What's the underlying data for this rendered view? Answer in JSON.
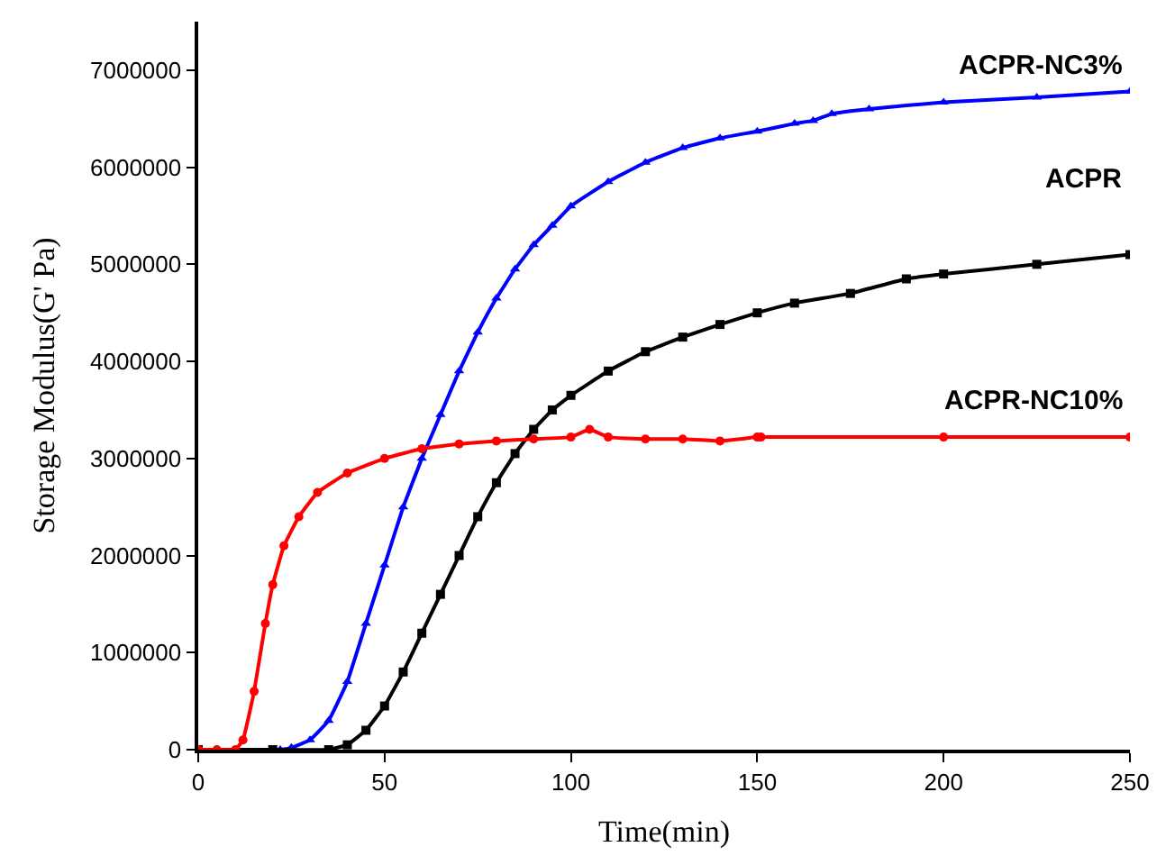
{
  "chart_data": {
    "type": "line",
    "xlabel": "Time(min)",
    "ylabel": "Storage Modulus(G' Pa)",
    "xlim": [
      0,
      250
    ],
    "ylim": [
      0,
      7500000
    ],
    "xticks": [
      0,
      50,
      100,
      150,
      200,
      250
    ],
    "yticks": [
      0,
      1000000,
      2000000,
      3000000,
      4000000,
      5000000,
      6000000,
      7000000
    ],
    "legend": false,
    "series": [
      {
        "name": "ACPR-NC3%",
        "color": "#0000ff",
        "marker": "triangle",
        "x": [
          0,
          10,
          20,
          22,
          25,
          30,
          35,
          40,
          45,
          50,
          55,
          60,
          65,
          70,
          75,
          80,
          85,
          90,
          95,
          100,
          110,
          120,
          130,
          140,
          150,
          160,
          165,
          170,
          180,
          200,
          225,
          250
        ],
        "values": [
          0,
          0,
          0,
          0,
          20000,
          100000,
          300000,
          700000,
          1300000,
          1900000,
          2500000,
          3000000,
          3450000,
          3900000,
          4300000,
          4650000,
          4950000,
          5200000,
          5400000,
          5600000,
          5850000,
          6050000,
          6200000,
          6300000,
          6370000,
          6450000,
          6480000,
          6550000,
          6600000,
          6670000,
          6720000,
          6780000
        ]
      },
      {
        "name": "ACPR",
        "color": "#000000",
        "marker": "square",
        "x": [
          0,
          20,
          35,
          40,
          45,
          50,
          55,
          60,
          65,
          70,
          75,
          80,
          85,
          90,
          95,
          100,
          110,
          120,
          130,
          140,
          150,
          160,
          175,
          190,
          200,
          225,
          250
        ],
        "values": [
          0,
          0,
          0,
          50000,
          200000,
          450000,
          800000,
          1200000,
          1600000,
          2000000,
          2400000,
          2750000,
          3050000,
          3300000,
          3500000,
          3650000,
          3900000,
          4100000,
          4250000,
          4380000,
          4500000,
          4600000,
          4700000,
          4850000,
          4900000,
          5000000,
          5100000
        ]
      },
      {
        "name": "ACPR-NC10%",
        "color": "#ff0000",
        "marker": "circle",
        "x": [
          0,
          5,
          10,
          12,
          15,
          18,
          20,
          23,
          27,
          32,
          40,
          50,
          60,
          70,
          80,
          90,
          100,
          105,
          110,
          120,
          130,
          140,
          150,
          151,
          200,
          250
        ],
        "values": [
          0,
          0,
          0,
          100000,
          600000,
          1300000,
          1700000,
          2100000,
          2400000,
          2650000,
          2850000,
          3000000,
          3100000,
          3150000,
          3180000,
          3200000,
          3220000,
          3300000,
          3220000,
          3200000,
          3200000,
          3180000,
          3220000,
          3220000,
          3220000,
          3220000
        ]
      }
    ]
  }
}
